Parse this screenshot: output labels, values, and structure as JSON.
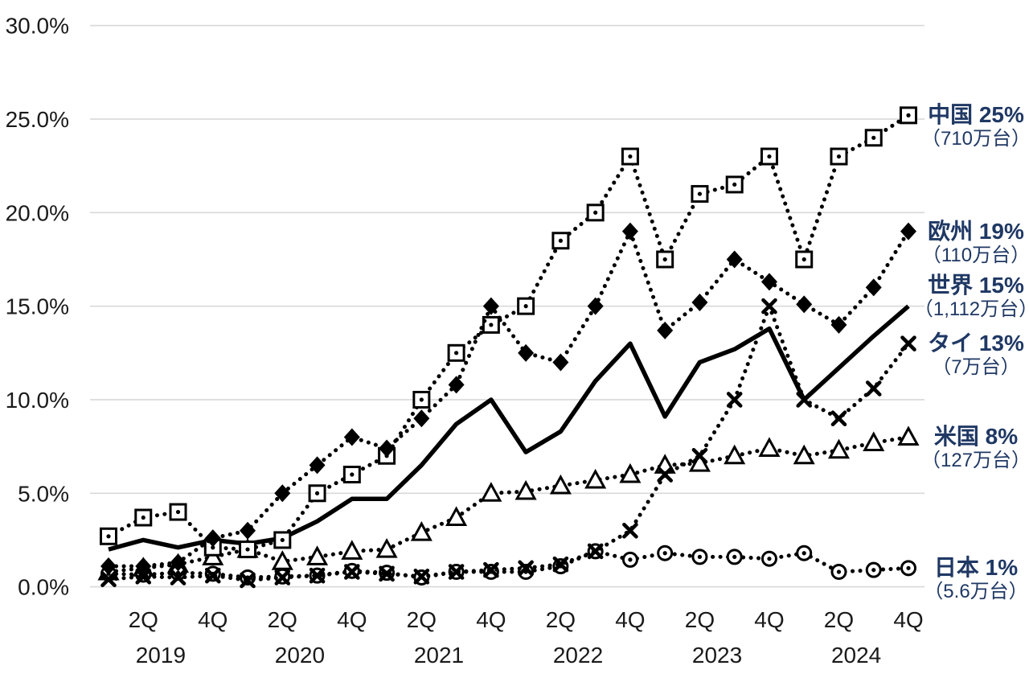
{
  "colors": {
    "background": "#ffffff",
    "grid": "#d9d9d9",
    "axis_text": "#1a1a1a",
    "series_color": "#000000",
    "label_text": "#1f3864"
  },
  "chart_data": {
    "type": "line",
    "title": "",
    "xlabel": "",
    "ylabel": "",
    "ylim": [
      0,
      30
    ],
    "grid": "horizontal-only",
    "legend_position": "right-of-line-ends",
    "y_axis": {
      "ticks": [
        {
          "value": 30,
          "label": "30.0%"
        },
        {
          "value": 25,
          "label": "25.0%"
        },
        {
          "value": 20,
          "label": "20.0%"
        },
        {
          "value": 15,
          "label": "15.0%"
        },
        {
          "value": 10,
          "label": "10.0%"
        },
        {
          "value": 5,
          "label": "5.0%"
        },
        {
          "value": 0,
          "label": "0.0%"
        }
      ]
    },
    "x_axis": {
      "quarters": [
        "2019Q1",
        "2019Q2",
        "2019Q3",
        "2019Q4",
        "2020Q1",
        "2020Q2",
        "2020Q3",
        "2020Q4",
        "2021Q1",
        "2021Q2",
        "2021Q3",
        "2021Q4",
        "2022Q1",
        "2022Q2",
        "2022Q3",
        "2022Q4",
        "2023Q1",
        "2023Q2",
        "2023Q3",
        "2023Q4",
        "2024Q1",
        "2024Q2",
        "2024Q3",
        "2024Q4"
      ],
      "quarter_ticks": [
        {
          "index": 1,
          "label": "2Q"
        },
        {
          "index": 3,
          "label": "4Q"
        },
        {
          "index": 5,
          "label": "2Q"
        },
        {
          "index": 7,
          "label": "4Q"
        },
        {
          "index": 9,
          "label": "2Q"
        },
        {
          "index": 11,
          "label": "4Q"
        },
        {
          "index": 13,
          "label": "2Q"
        },
        {
          "index": 15,
          "label": "4Q"
        },
        {
          "index": 17,
          "label": "2Q"
        },
        {
          "index": 19,
          "label": "4Q"
        },
        {
          "index": 21,
          "label": "2Q"
        },
        {
          "index": 23,
          "label": "4Q"
        }
      ],
      "years": [
        {
          "label": "2019",
          "center_index": 1.5
        },
        {
          "label": "2020",
          "center_index": 5.5
        },
        {
          "label": "2021",
          "center_index": 9.5
        },
        {
          "label": "2022",
          "center_index": 13.5
        },
        {
          "label": "2023",
          "center_index": 17.5
        },
        {
          "label": "2024",
          "center_index": 21.5
        }
      ]
    },
    "render_order": [
      "us",
      "japan",
      "world",
      "thailand",
      "china",
      "europe"
    ],
    "series": [
      {
        "id": "china",
        "name": "中国",
        "label": "中国 25%",
        "sublabel": "（710万台）",
        "line": "dotted",
        "marker": "square-dot",
        "label_dy": 0,
        "values": [
          2.7,
          3.7,
          4.0,
          2.1,
          2.0,
          2.5,
          5.0,
          6.0,
          7.0,
          10.0,
          12.5,
          14.0,
          15.0,
          18.5,
          20.0,
          23.0,
          17.5,
          21.0,
          21.5,
          23.0,
          17.5,
          23.0,
          24.0,
          25.2
        ]
      },
      {
        "id": "europe",
        "name": "欧州",
        "label": "欧州 19%",
        "sublabel": "（110万台）",
        "line": "dotted",
        "marker": "diamond",
        "label_dy": 0,
        "values": [
          1.1,
          1.1,
          1.3,
          2.6,
          3.0,
          5.0,
          6.5,
          8.0,
          7.4,
          9.0,
          10.8,
          15.0,
          12.5,
          12.0,
          15.0,
          19.0,
          13.7,
          15.2,
          17.5,
          16.3,
          15.1,
          14.0,
          16.0,
          19.0
        ]
      },
      {
        "id": "world",
        "name": "世界",
        "label": "世界 15%",
        "sublabel": "（1,112万台）",
        "line": "solid",
        "marker": "none",
        "label_dy": -26,
        "values": [
          2.0,
          2.5,
          2.1,
          2.5,
          2.3,
          2.6,
          3.5,
          4.7,
          4.7,
          6.5,
          8.7,
          10.0,
          7.2,
          8.3,
          11.0,
          13.0,
          9.1,
          12.0,
          12.7,
          13.8,
          10.0,
          11.7,
          13.4,
          15.0
        ]
      },
      {
        "id": "thailand",
        "name": "タイ",
        "label": "タイ 13%",
        "sublabel": "（7万台）",
        "line": "dotted",
        "marker": "x",
        "label_dy": 0,
        "values": [
          0.4,
          0.55,
          0.5,
          0.6,
          0.35,
          0.5,
          0.6,
          0.8,
          0.7,
          0.55,
          0.8,
          0.9,
          1.0,
          1.2,
          1.9,
          3.0,
          6.0,
          7.0,
          10.0,
          15.0,
          10.0,
          9.0,
          10.6,
          13.0
        ]
      },
      {
        "id": "us",
        "name": "米国",
        "label": "米国 8%",
        "sublabel": "（127万台）",
        "line": "dotted",
        "marker": "triangle",
        "label_dy": 0,
        "values": [
          0.8,
          1.0,
          1.2,
          1.6,
          2.0,
          1.35,
          1.6,
          1.9,
          2.0,
          2.9,
          3.7,
          5.0,
          5.1,
          5.4,
          5.7,
          6.0,
          6.5,
          6.6,
          7.0,
          7.4,
          7.0,
          7.3,
          7.7,
          8.0
        ]
      },
      {
        "id": "japan",
        "name": "日本",
        "label": "日本 1%",
        "sublabel": "（5.6万台）",
        "line": "dotted",
        "marker": "circle-dot",
        "label_dy": 0,
        "values": [
          0.7,
          0.65,
          0.75,
          0.7,
          0.5,
          0.55,
          0.6,
          0.85,
          0.75,
          0.5,
          0.8,
          0.8,
          0.8,
          1.1,
          1.9,
          1.45,
          1.8,
          1.6,
          1.6,
          1.5,
          1.8,
          0.8,
          0.9,
          1.0
        ]
      }
    ]
  }
}
